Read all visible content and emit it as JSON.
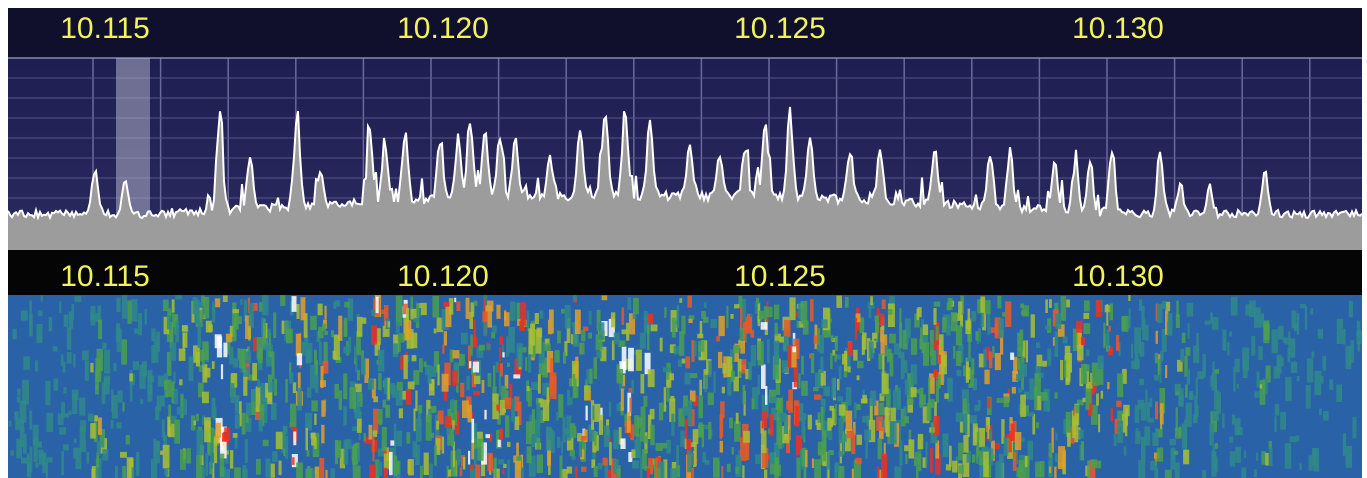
{
  "spectrum": {
    "scale_labels": [
      "10.115",
      "10.120",
      "10.125",
      "10.130"
    ]
  },
  "waterfall": {
    "scale_labels": [
      "10.115",
      "10.120",
      "10.125",
      "10.130"
    ]
  }
}
